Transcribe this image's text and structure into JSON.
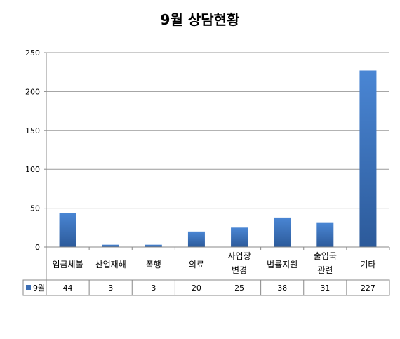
{
  "chart_data": {
    "type": "bar",
    "title": "9월 상담현황",
    "categories": [
      "임금체불",
      "산업재해",
      "폭행",
      "의료",
      "사업장\n변경",
      "법률지원",
      "출입국\n관련",
      "기타"
    ],
    "series": [
      {
        "name": "9월",
        "values": [
          44,
          3,
          3,
          20,
          25,
          38,
          31,
          227
        ],
        "color": "#3C6EB4"
      }
    ],
    "ylim": [
      0,
      250
    ],
    "yticks": [
      0,
      50,
      100,
      150,
      200,
      250
    ],
    "grid": true,
    "legend": "data-table",
    "xlabel": "",
    "ylabel": ""
  }
}
